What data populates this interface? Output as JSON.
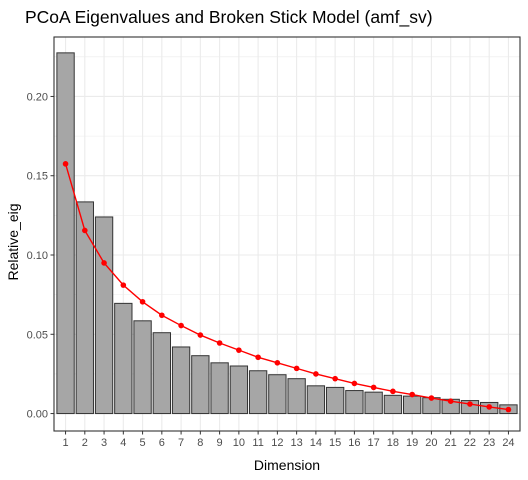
{
  "chart_data": {
    "type": "bar",
    "title": "PCoA Eigenvalues and Broken Stick Model (amf_sv)",
    "xlabel": "Dimension",
    "ylabel": "Relative_eig",
    "categories": [
      "1",
      "2",
      "3",
      "4",
      "5",
      "6",
      "7",
      "8",
      "9",
      "10",
      "11",
      "12",
      "13",
      "14",
      "15",
      "16",
      "17",
      "18",
      "19",
      "20",
      "21",
      "22",
      "23",
      "24"
    ],
    "ylim": [
      -0.011,
      0.2375
    ],
    "yticks": [
      "0.00",
      "0.05",
      "0.10",
      "0.15",
      "0.20"
    ],
    "grid": true,
    "series": [
      {
        "type": "bar",
        "values": [
          0.2275,
          0.1335,
          0.124,
          0.0695,
          0.0585,
          0.051,
          0.042,
          0.0365,
          0.032,
          0.03,
          0.027,
          0.0245,
          0.022,
          0.0175,
          0.0165,
          0.0145,
          0.0135,
          0.0115,
          0.011,
          0.01,
          0.009,
          0.0082,
          0.007,
          0.0055
        ],
        "fill": "#a6a6a6",
        "stroke": "#333333"
      },
      {
        "type": "line",
        "values": [
          0.1575,
          0.1155,
          0.095,
          0.081,
          0.0705,
          0.062,
          0.0555,
          0.0495,
          0.0445,
          0.04,
          0.0355,
          0.032,
          0.0285,
          0.025,
          0.022,
          0.019,
          0.0165,
          0.014,
          0.012,
          0.0098,
          0.0078,
          0.006,
          0.0042,
          0.0025
        ],
        "color": "#ff0000"
      }
    ]
  }
}
